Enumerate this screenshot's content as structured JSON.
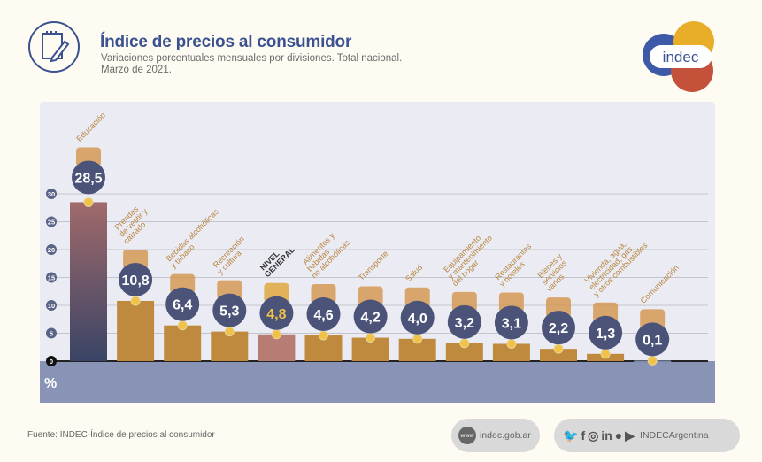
{
  "header": {
    "title": "Índice de precios al consumidor",
    "subtitle": "Variaciones porcentuales mensuales por divisiones. Total nacional.",
    "date": "Marzo de 2021.",
    "icon": "notepad-pencil-icon",
    "logo_text": "indec"
  },
  "chart_data": {
    "type": "bar",
    "ylabel": "%",
    "ylim": [
      0,
      30
    ],
    "yticks": [
      "0",
      "5",
      "10",
      "15",
      "20",
      "25",
      "30"
    ],
    "grid": true,
    "categories": [
      "Educación",
      "Prendas de vestir y calzado",
      "Bebidas alcohólicas y tabaco",
      "Recreación y cultura",
      "NIVEL GENERAL",
      "Alimentos y bebidas no alcohólicas",
      "Transporte",
      "Salud",
      "Equipamiento y mantenimiento del hogar",
      "Restaurantes y hoteles",
      "Bienes y servicios varios",
      "Vivienda, agua, electricidad, gas y otros combustibles",
      "Comunicación"
    ],
    "label_lines": [
      [
        "Educación"
      ],
      [
        "Prendas",
        "de vestir y",
        "calzado"
      ],
      [
        "Bebidas alcohólicas",
        "y tabaco"
      ],
      [
        "Recreación",
        "y cultura"
      ],
      [
        "NIVEL",
        "GENERAL"
      ],
      [
        "Alimentos y",
        "bebidas",
        "no alcohólicas"
      ],
      [
        "Transporte"
      ],
      [
        "Salud"
      ],
      [
        "Equipamiento",
        "y mantenimiento",
        "del hogar"
      ],
      [
        "Restaurantes",
        "y hoteles"
      ],
      [
        "Bienes y",
        "servicios",
        "varios"
      ],
      [
        "Vivienda, agua,",
        "electricidad, gas",
        "y otros combustibles"
      ],
      [
        "Comunicación"
      ]
    ],
    "values": [
      28.5,
      10.8,
      6.4,
      5.3,
      4.8,
      4.6,
      4.2,
      4.0,
      3.2,
      3.1,
      2.2,
      1.3,
      0.1
    ],
    "value_labels": [
      "28,5",
      "10,8",
      "6,4",
      "5,3",
      "4,8",
      "4,6",
      "4,2",
      "4,0",
      "3,2",
      "3,1",
      "2,2",
      "1,3",
      "0,1"
    ],
    "colors": {
      "default": "#c08a3e",
      "highlight_general": "#b77c74",
      "education_top": "#a06a6a",
      "education_bottom": "#3a4466",
      "min": "#7f8aab",
      "badge": "#4b5478",
      "label": "#b8863f",
      "general_label": "#333333"
    }
  },
  "footer": {
    "source": "Fuente: INDEC-Índice de precios al consumidor",
    "website": "indec.gob.ar",
    "www_label": "www",
    "social_handle": "INDECArgentina",
    "social_icons": [
      "twitter-icon",
      "facebook-icon",
      "instagram-icon",
      "linkedin-icon",
      "spotify-icon",
      "youtube-icon"
    ]
  }
}
